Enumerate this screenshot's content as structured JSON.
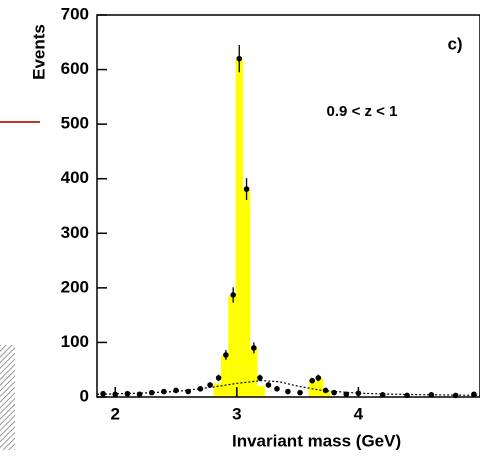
{
  "chart_data": {
    "type": "histogram",
    "ylabel": "Events",
    "xlabel": "Invariant mass (GeV)",
    "panel_label": "c)",
    "annotation": "0.9 < z < 1",
    "xlim": [
      1.85,
      5.0
    ],
    "ylim": [
      0,
      700
    ],
    "xticks": [
      2,
      3,
      4
    ],
    "yticks": [
      0,
      100,
      200,
      300,
      400,
      500,
      600,
      700
    ],
    "color": "#ffff00",
    "bins": [
      2.81,
      2.87,
      2.93,
      2.99,
      3.05,
      3.11,
      3.17,
      3.23,
      3.29,
      3.35,
      3.41,
      3.47,
      3.53,
      3.59,
      3.65,
      3.71,
      3.77
    ],
    "counts": [
      25,
      75,
      185,
      620,
      380,
      90,
      20,
      0,
      0,
      0,
      0,
      0,
      0,
      30,
      35,
      10
    ],
    "points": {
      "x": [
        1.9,
        2.0,
        2.1,
        2.2,
        2.3,
        2.4,
        2.5,
        2.6,
        2.7,
        2.78,
        2.85,
        2.91,
        2.97,
        3.02,
        3.08,
        3.14,
        3.19,
        3.26,
        3.33,
        3.42,
        3.52,
        3.62,
        3.67,
        3.73,
        3.8,
        3.9,
        4.0,
        4.2,
        4.4,
        4.6,
        4.8,
        4.95
      ],
      "values": [
        6,
        5,
        6,
        5,
        8,
        10,
        12,
        10,
        15,
        22,
        35,
        77,
        187,
        620,
        381,
        90,
        35,
        22,
        15,
        10,
        8,
        30,
        35,
        12,
        8,
        5,
        7,
        4,
        3,
        4,
        3,
        5
      ],
      "errors": [
        3,
        3,
        3,
        3,
        3,
        4,
        4,
        4,
        4,
        5,
        6,
        9,
        14,
        25,
        20,
        10,
        6,
        5,
        4,
        3,
        3,
        5,
        6,
        4,
        3,
        3,
        3,
        2,
        2,
        2,
        2,
        2
      ]
    },
    "curve": {
      "x": [
        1.85,
        2.2,
        2.5,
        2.8,
        3.0,
        3.2,
        3.35,
        3.5,
        3.7,
        4.0,
        4.3,
        4.6,
        5.0
      ],
      "values": [
        5,
        7,
        10,
        18,
        25,
        30,
        28,
        20,
        12,
        7,
        5,
        4,
        3
      ]
    }
  }
}
